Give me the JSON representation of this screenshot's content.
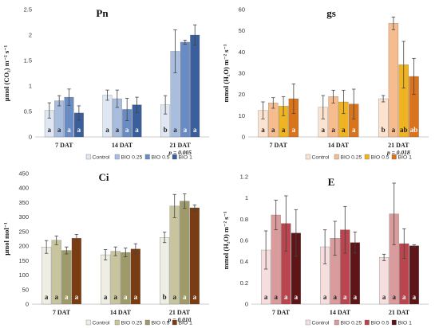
{
  "chart_data": [
    {
      "type": "bar",
      "title": "Pn",
      "ylabel": "µmol (CO₂) m⁻² s⁻¹",
      "ylim": [
        0,
        2.5
      ],
      "yticks": [
        "0",
        "0.5",
        "1",
        "1.5",
        "2",
        "2.5"
      ],
      "categories": [
        "7 DAT",
        "14 DAT",
        "21 DAT"
      ],
      "pvalues": [
        "",
        "",
        "p = 0.005"
      ],
      "colors": [
        "#dfe7f3",
        "#a9bedf",
        "#6a8cc4",
        "#3b5f9c"
      ],
      "series": [
        {
          "name": "Control",
          "values": [
            0.52,
            0.82,
            0.63
          ],
          "errors": [
            0.15,
            0.1,
            0.18
          ],
          "letters": [
            "a",
            "a",
            "b"
          ]
        },
        {
          "name": "BIO 0.25",
          "values": [
            0.71,
            0.75,
            1.68
          ],
          "errors": [
            0.1,
            0.17,
            0.42
          ],
          "letters": [
            "a",
            "a",
            "a"
          ]
        },
        {
          "name": "BIO 0.5",
          "values": [
            0.78,
            0.54,
            1.86
          ],
          "errors": [
            0.16,
            0.22,
            0.04
          ],
          "letters": [
            "a",
            "a",
            "a"
          ]
        },
        {
          "name": "BIO 1",
          "values": [
            0.47,
            0.63,
            2.0
          ],
          "errors": [
            0.14,
            0.15,
            0.2
          ],
          "letters": [
            "a",
            "a",
            "a"
          ]
        }
      ]
    },
    {
      "type": "bar",
      "title": "gs",
      "ylabel": "mmol (H₂O) m⁻² s⁻¹",
      "ylim": [
        0,
        60
      ],
      "yticks": [
        "0",
        "10",
        "20",
        "30",
        "40",
        "50",
        "60"
      ],
      "categories": [
        "7 DAT",
        "14 DAT",
        "21 DAT"
      ],
      "pvalues": [
        "",
        "",
        "p = 0.018"
      ],
      "colors": [
        "#fbe3cf",
        "#f6bc8d",
        "#f0b322",
        "#d9731c"
      ],
      "series": [
        {
          "name": "Control",
          "values": [
            12.5,
            14.0,
            18.0
          ],
          "errors": [
            4.0,
            5.5,
            1.5
          ],
          "letters": [
            "a",
            "a",
            "b"
          ]
        },
        {
          "name": "BIO 0.25",
          "values": [
            16.0,
            19.0,
            53.5
          ],
          "errors": [
            2.5,
            3.0,
            3.0
          ],
          "letters": [
            "a",
            "a",
            "a"
          ]
        },
        {
          "name": "BIO 0.5",
          "values": [
            14.5,
            16.5,
            34.0
          ],
          "errors": [
            4.5,
            5.5,
            11.0
          ],
          "letters": [
            "a",
            "a",
            "ab"
          ]
        },
        {
          "name": "BIO 1",
          "values": [
            18.0,
            15.5,
            28.5
          ],
          "errors": [
            7.0,
            7.0,
            8.5
          ],
          "letters": [
            "a",
            "a",
            "ab"
          ]
        }
      ]
    },
    {
      "type": "bar",
      "title": "Ci",
      "ylabel": "µmol mol⁻¹",
      "ylim": [
        0,
        450
      ],
      "yticks": [
        "0",
        "50",
        "100",
        "150",
        "200",
        "250",
        "300",
        "350",
        "400",
        "450"
      ],
      "categories": [
        "7 DAT",
        "14 DAT",
        "21 DAT"
      ],
      "pvalues": [
        "",
        "",
        "p = 0.010"
      ],
      "colors": [
        "#eeeee4",
        "#c8c59e",
        "#9e9a6a",
        "#7a3c12"
      ],
      "series": [
        {
          "name": "Control",
          "values": [
            197,
            170,
            230
          ],
          "errors": [
            22,
            18,
            18
          ],
          "letters": [
            "a",
            "a",
            "b"
          ]
        },
        {
          "name": "BIO 0.25",
          "values": [
            220,
            182,
            338
          ],
          "errors": [
            15,
            15,
            40
          ],
          "letters": [
            "a",
            "a",
            "a"
          ]
        },
        {
          "name": "BIO 0.5",
          "values": [
            185,
            178,
            355
          ],
          "errors": [
            12,
            15,
            25
          ],
          "letters": [
            "a",
            "a",
            "a"
          ]
        },
        {
          "name": "BIO 1",
          "values": [
            227,
            190,
            332
          ],
          "errors": [
            13,
            18,
            10
          ],
          "letters": [
            "a",
            "a",
            "a"
          ]
        }
      ]
    },
    {
      "type": "bar",
      "title": "E",
      "ylabel": "mmol (H₂O) m⁻² s⁻¹",
      "ylim": [
        0,
        1.2
      ],
      "yticks": [
        "0",
        "0.2",
        "0.4",
        "0.6",
        "0.8",
        "1",
        "1.2"
      ],
      "categories": [
        "7 DAT",
        "14 DAT",
        "21 DAT"
      ],
      "pvalues": [
        "",
        "",
        ""
      ],
      "colors": [
        "#f6dede",
        "#d99b9b",
        "#b9454f",
        "#5e1518"
      ],
      "series": [
        {
          "name": "Control",
          "values": [
            0.51,
            0.54,
            0.44
          ],
          "errors": [
            0.18,
            0.16,
            0.03
          ],
          "letters": [
            "a",
            "a",
            "a"
          ]
        },
        {
          "name": "BIO 0.25",
          "values": [
            0.84,
            0.62,
            0.85
          ],
          "errors": [
            0.14,
            0.16,
            0.29
          ],
          "letters": [
            "a",
            "a",
            "a"
          ]
        },
        {
          "name": "BIO 0.5",
          "values": [
            0.76,
            0.7,
            0.57
          ],
          "errors": [
            0.26,
            0.22,
            0.14
          ],
          "letters": [
            "a",
            "a",
            "a"
          ]
        },
        {
          "name": "BIO 1",
          "values": [
            0.67,
            0.58,
            0.55
          ],
          "errors": [
            0.22,
            0.1,
            0.01
          ],
          "letters": [
            "a",
            "a",
            "a"
          ]
        }
      ]
    }
  ]
}
